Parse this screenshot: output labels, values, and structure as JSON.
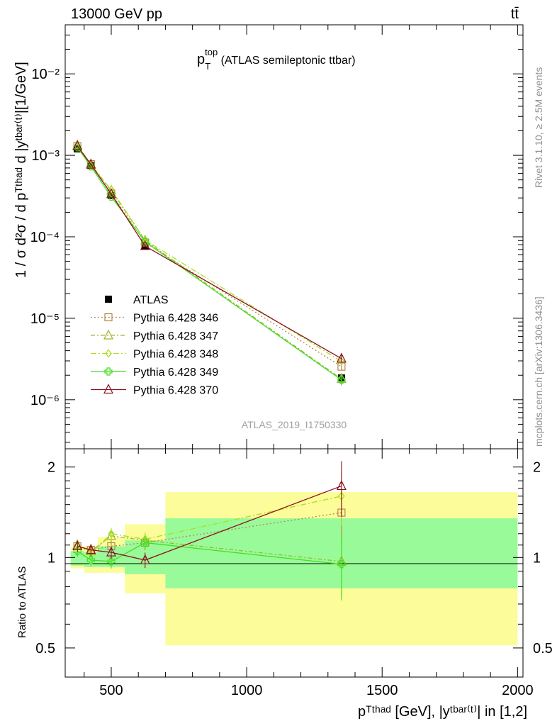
{
  "header": {
    "left": "13000 GeV pp",
    "right": "tt̄"
  },
  "plot_title": {
    "main": "p",
    "sup": "top",
    "sub": "T",
    "rest": " (ATLAS semileptonic ttbar)"
  },
  "ylabel_main": "1 / σ d²σ / d pᵀᵗʰᵃᵈ d |yᵗᵇᵃʳ⁽ᵗ⁾|[1/GeV]",
  "ylabel_ratio": "Ratio to ATLAS",
  "xlabel": "pᵀᵗʰᵃᵈ [GeV], |yᵗᵇᵃʳ⁽ᵗ⁾| in [1,2]",
  "analysis_id": "ATLAS_2019_I1750330",
  "side_label_top": "Rivet 3.1.10, ≥ 2.5M events",
  "side_label_bottom": "mcplots.cern.ch [arXiv:1306.3436]",
  "colors": {
    "data": "#000000",
    "p346": "#b8864b",
    "p347": "#9cb82a",
    "p348": "#a8e020",
    "p349": "#44dd22",
    "p370": "#8b1020",
    "band_inner": "#99fa99",
    "band_outer": "#fcfc9a"
  },
  "chart_data": [
    {
      "type": "line",
      "yscale": "log",
      "xlim": [
        330,
        2020
      ],
      "ylim": [
        2.5e-07,
        0.04
      ],
      "y_ticks": [
        "10⁻⁶",
        "10⁻⁵",
        "10⁻⁴",
        "10⁻³",
        "10⁻²"
      ],
      "x": [
        375,
        425,
        500,
        625,
        1350
      ],
      "series": [
        {
          "name": "ATLAS",
          "style": "data",
          "values": [
            0.0012,
            0.00075,
            0.00032,
            7.8e-05,
            1.85e-06
          ],
          "errors": [
            8e-05,
            4e-05,
            1.5e-05,
            4e-06,
            2.5e-07
          ]
        },
        {
          "name": "Pythia 6.428 346",
          "style": "p346",
          "marker": "square",
          "dash": "2,3",
          "values": [
            0.0013,
            0.00078,
            0.00034,
            8.5e-05,
            2.55e-06
          ],
          "errors": [
            3e-05,
            2e-05,
            1e-05,
            3e-06,
            2.5e-07
          ]
        },
        {
          "name": "Pythia 6.428 347",
          "style": "p347",
          "marker": "triangle",
          "dash": "6,3,2,3",
          "values": [
            0.00133,
            0.00078,
            0.00037,
            9e-05,
            1.8e-06
          ],
          "errors": [
            3e-05,
            2e-05,
            1e-05,
            3e-06,
            2.5e-07
          ]
        },
        {
          "name": "Pythia 6.428 348",
          "style": "p348",
          "marker": "diamond",
          "dash": "8,3,2,3",
          "values": [
            0.0013,
            0.00075,
            0.00038,
            9.1e-05,
            2.95e-06
          ],
          "errors": [
            3e-05,
            2e-05,
            1e-05,
            3e-06,
            3e-07
          ]
        },
        {
          "name": "Pythia 6.428 349",
          "style": "p349",
          "marker": "cross",
          "dash": "",
          "values": [
            0.00125,
            0.00073,
            0.00031,
            8.7e-05,
            1.75e-06
          ],
          "errors": [
            3e-05,
            2e-05,
            1e-05,
            3e-06,
            2.5e-07
          ]
        },
        {
          "name": "Pythia 6.428 370",
          "style": "p370",
          "marker": "triangle",
          "dash": "",
          "values": [
            0.0013,
            0.00077,
            0.000335,
            7.7e-05,
            3.2e-06
          ],
          "errors": [
            3e-05,
            2e-05,
            1e-05,
            3e-06,
            3.5e-07
          ]
        }
      ]
    },
    {
      "type": "line",
      "title": "Ratio to ATLAS",
      "yscale": "log",
      "ylim": [
        0.4,
        2.3
      ],
      "y_ticks": [
        "0.5",
        "1",
        "2"
      ],
      "x_ticks": [
        "500",
        "1000",
        "1500",
        "2000"
      ],
      "bins": [
        [
          350,
          400
        ],
        [
          400,
          450
        ],
        [
          450,
          550
        ],
        [
          550,
          700
        ],
        [
          700,
          2000
        ]
      ],
      "band_inner": [
        [
          0.94,
          1.05
        ],
        [
          0.93,
          1.04
        ],
        [
          0.93,
          1.09
        ],
        [
          0.88,
          1.14
        ],
        [
          0.79,
          1.35
        ]
      ],
      "band_outer": [
        [
          0.92,
          1.08
        ],
        [
          0.89,
          1.09
        ],
        [
          0.89,
          1.17
        ],
        [
          0.76,
          1.29
        ],
        [
          0.51,
          1.65
        ]
      ],
      "x": [
        375,
        425,
        500,
        625,
        1350
      ],
      "series": [
        {
          "name": "Pythia 6.428 346",
          "style": "p346",
          "values": [
            1.09,
            1.06,
            1.09,
            1.12,
            1.41
          ]
        },
        {
          "name": "Pythia 6.428 347",
          "style": "p347",
          "values": [
            1.1,
            1.05,
            1.18,
            1.14,
            0.97
          ]
        },
        {
          "name": "Pythia 6.428 348",
          "style": "p348",
          "values": [
            1.1,
            1.03,
            1.2,
            1.15,
            1.6
          ]
        },
        {
          "name": "Pythia 6.428 349",
          "style": "p349",
          "values": [
            1.05,
            0.98,
            0.97,
            1.12,
            0.95
          ]
        },
        {
          "name": "Pythia 6.428 370",
          "style": "p370",
          "values": [
            1.09,
            1.06,
            1.04,
            0.98,
            1.73
          ]
        }
      ],
      "xlabel": "p_T^{t,had} [GeV], |y^{tbar{t}}| in [1,2]"
    }
  ]
}
